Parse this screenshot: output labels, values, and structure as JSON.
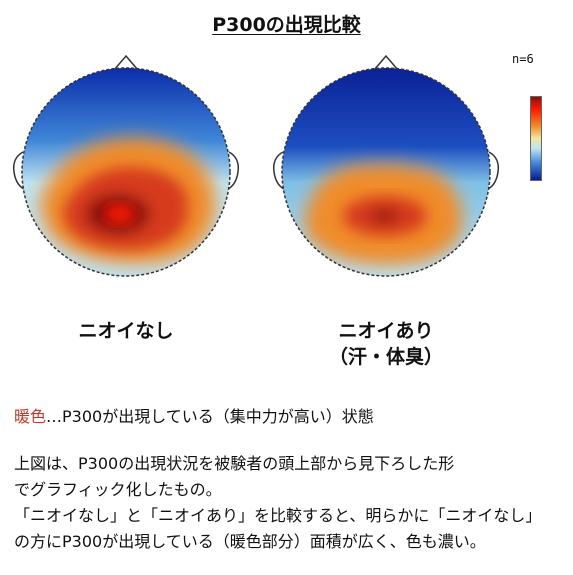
{
  "title": "P300の出現比較",
  "sample_size": "n=6",
  "maps": [
    {
      "label": "ニオイなし",
      "sublabel": ""
    },
    {
      "label": "ニオイあり",
      "sublabel": "（汗・体臭）"
    }
  ],
  "legend": {
    "warm_term": "暖色",
    "warm_description": "…P300が出現している（集中力が高い）状態"
  },
  "description": [
    "上図は、P300の出現状況を被験者の頭上部から見下ろした形",
    "でグラフィック化したもの。",
    "「ニオイなし」と「ニオイあり」を比較すると、明らかに「ニオイなし」",
    "の方にP300が出現している（暖色部分）面積が広く、色も濃い。"
  ],
  "colors": {
    "cold": "#0a2aa8",
    "cool": "#3f86d8",
    "light": "#bfe3f2",
    "warm": "#f08c2a",
    "hot": "#d63a1a",
    "peak": "#ff1a00",
    "deep": "#8a1010"
  }
}
